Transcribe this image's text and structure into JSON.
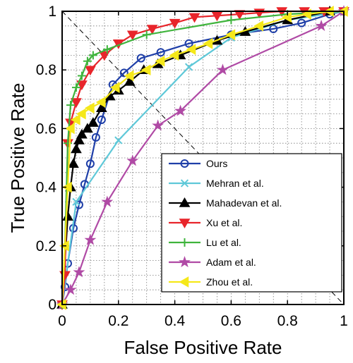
{
  "chart_data": {
    "type": "line",
    "title": "",
    "xlabel": "False Positive Rate",
    "ylabel": "True Positive Rate",
    "xlim": [
      0,
      1
    ],
    "ylim": [
      0,
      1
    ],
    "xticks": [
      "0",
      "0.2",
      "0.4",
      "0.6",
      "0.8",
      "1"
    ],
    "yticks": [
      "0",
      "0.2",
      "0.4",
      "0.6",
      "0.8",
      "1"
    ],
    "grid": true,
    "minor_grid": true,
    "diagonal_reference": true,
    "legend_position": "bottom-right",
    "series": [
      {
        "name": "Ours",
        "color": "#1f3fa8",
        "marker": "circle",
        "x": [
          0,
          0.01,
          0.02,
          0.04,
          0.06,
          0.08,
          0.1,
          0.12,
          0.14,
          0.18,
          0.22,
          0.28,
          0.35,
          0.45,
          0.6,
          0.75,
          0.85,
          0.95,
          1
        ],
        "y": [
          0,
          0.06,
          0.14,
          0.26,
          0.34,
          0.41,
          0.48,
          0.57,
          0.63,
          0.75,
          0.79,
          0.84,
          0.86,
          0.89,
          0.92,
          0.94,
          0.96,
          0.99,
          1
        ]
      },
      {
        "name": "Mehran et al.",
        "color": "#5ec8d8",
        "marker": "x",
        "x": [
          0,
          0.05,
          0.2,
          0.45,
          0.6,
          0.8,
          1
        ],
        "y": [
          0,
          0.35,
          0.56,
          0.81,
          0.91,
          0.97,
          1
        ]
      },
      {
        "name": "Mahadevan et al.",
        "color": "#000000",
        "marker": "triangle-up",
        "x": [
          0,
          0.02,
          0.03,
          0.04,
          0.05,
          0.06,
          0.07,
          0.09,
          0.11,
          0.14,
          0.17,
          0.2,
          0.24,
          0.29,
          0.34,
          0.42,
          0.55,
          0.65,
          0.8,
          0.95
        ],
        "y": [
          0,
          0.3,
          0.4,
          0.48,
          0.53,
          0.56,
          0.58,
          0.6,
          0.62,
          0.67,
          0.71,
          0.73,
          0.76,
          0.8,
          0.82,
          0.85,
          0.9,
          0.93,
          0.97,
          1
        ]
      },
      {
        "name": "Xu et al.",
        "color": "#e8252b",
        "marker": "triangle-down",
        "x": [
          0,
          0.01,
          0.02,
          0.03,
          0.05,
          0.07,
          0.1,
          0.15,
          0.2,
          0.25,
          0.32,
          0.4,
          0.47,
          0.55,
          0.63,
          0.7,
          0.78,
          0.86,
          0.93,
          1
        ],
        "y": [
          0,
          0.1,
          0.55,
          0.62,
          0.69,
          0.75,
          0.8,
          0.85,
          0.89,
          0.92,
          0.94,
          0.96,
          0.98,
          0.985,
          0.99,
          0.995,
          1,
          1,
          1,
          1
        ]
      },
      {
        "name": "Lu et al.",
        "color": "#3fb43c",
        "marker": "plus",
        "x": [
          0,
          0.01,
          0.02,
          0.03,
          0.05,
          0.07,
          0.09,
          0.11,
          0.16,
          0.3,
          0.6,
          0.8,
          1
        ],
        "y": [
          0,
          0.2,
          0.55,
          0.68,
          0.74,
          0.78,
          0.83,
          0.85,
          0.87,
          0.92,
          0.97,
          0.99,
          1
        ]
      },
      {
        "name": "Adam et al.",
        "color": "#b04aa5",
        "marker": "star",
        "x": [
          0,
          0.03,
          0.06,
          0.1,
          0.16,
          0.25,
          0.34,
          0.42,
          0.57,
          0.92,
          1
        ],
        "y": [
          0,
          0.05,
          0.11,
          0.22,
          0.35,
          0.49,
          0.61,
          0.66,
          0.8,
          0.95,
          1
        ]
      },
      {
        "name": "Zhou et al.",
        "color": "#f5e81a",
        "marker": "triangle-left",
        "x": [
          0,
          0.01,
          0.02,
          0.03,
          0.05,
          0.07,
          0.1,
          0.14,
          0.19,
          0.24,
          0.3,
          0.35,
          0.4,
          0.46,
          0.52,
          0.6,
          0.7,
          0.8,
          0.87,
          0.95,
          1
        ],
        "y": [
          0,
          0.2,
          0.4,
          0.6,
          0.63,
          0.65,
          0.67,
          0.69,
          0.74,
          0.78,
          0.8,
          0.83,
          0.85,
          0.87,
          0.89,
          0.92,
          0.95,
          0.98,
          0.99,
          1,
          1
        ]
      }
    ]
  }
}
